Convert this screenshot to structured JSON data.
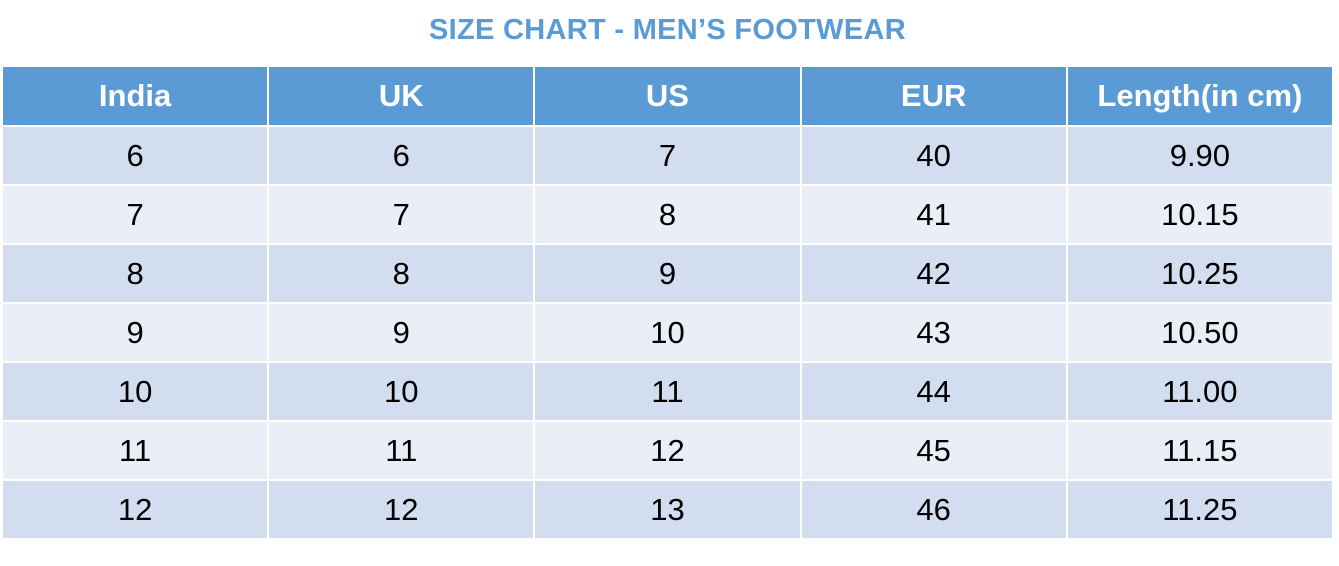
{
  "title": "SIZE CHART - MEN’S FOOTWEAR",
  "colors": {
    "accent": "#5b9bd5",
    "row_odd": "#d2deef",
    "row_even": "#eaeff7",
    "header_text": "#ffffff"
  },
  "table": {
    "headers": [
      "India",
      "UK",
      "US",
      "EUR",
      "Length(in cm)"
    ],
    "rows": [
      [
        "6",
        "6",
        "7",
        "40",
        "9.90"
      ],
      [
        "7",
        "7",
        "8",
        "41",
        "10.15"
      ],
      [
        "8",
        "8",
        "9",
        "42",
        "10.25"
      ],
      [
        "9",
        "9",
        "10",
        "43",
        "10.50"
      ],
      [
        "10",
        "10",
        "11",
        "44",
        "11.00"
      ],
      [
        "11",
        "11",
        "12",
        "45",
        "11.15"
      ],
      [
        "12",
        "12",
        "13",
        "46",
        "11.25"
      ]
    ]
  }
}
